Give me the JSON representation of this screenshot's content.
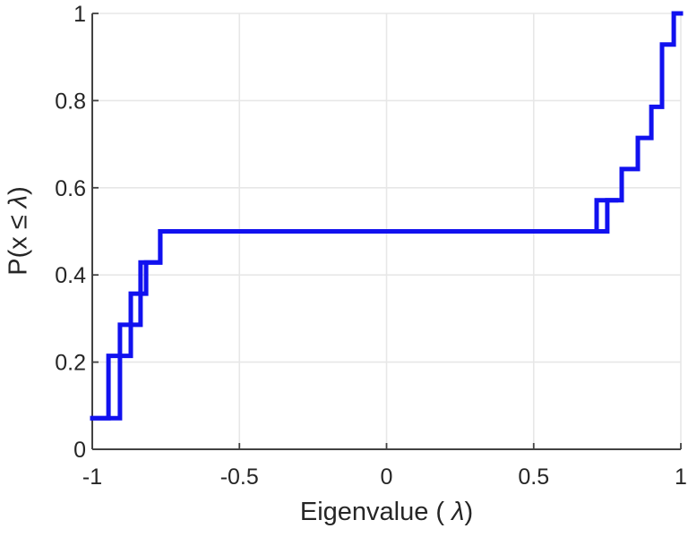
{
  "chart_data": {
    "type": "line",
    "subtype": "ecdf-stairs",
    "title": "",
    "xlabel_prefix": "Eigenvalue (  ",
    "xlabel_symbol": "λ",
    "xlabel_suffix": ")",
    "ylabel_prefix": "P(x ≤ ",
    "ylabel_symbol": "λ",
    "ylabel_suffix": ")",
    "xlim": [
      -1,
      1
    ],
    "ylim": [
      0,
      1
    ],
    "xticks": {
      "values": [
        -1,
        -0.5,
        0,
        0.5,
        1
      ],
      "labels": [
        "-1",
        "-0.5",
        "0",
        "0.5",
        "1"
      ]
    },
    "yticks": {
      "values": [
        0,
        0.2,
        0.4,
        0.6,
        0.8,
        1
      ],
      "labels": [
        "0",
        "0.2",
        "0.4",
        "0.6",
        "0.8",
        "1"
      ]
    },
    "grid": true,
    "legend": "none",
    "line_color": "#1111EF",
    "line_width": 5,
    "grid_color": "#e7e7e7",
    "spine_color": "#424242",
    "text_color": "#262626",
    "series": [
      {
        "name": "eigenvalue-ecdf",
        "start": [
          -1,
          0.0714
        ],
        "jumps": [
          [
            -0.945,
            0.2143
          ],
          [
            -0.869,
            0.3571
          ],
          [
            -0.817,
            0.4286
          ],
          [
            -0.769,
            0.5
          ],
          [
            0.714,
            0.5714
          ],
          [
            0.799,
            0.6429
          ],
          [
            0.854,
            0.7143
          ],
          [
            0.9,
            0.7857
          ],
          [
            0.936,
            0.9286
          ],
          [
            0.976,
            1.0
          ]
        ],
        "end": 1
      },
      {
        "name": "eigenvalue-ecdf-overlay",
        "start": [
          -1,
          0.0714
        ],
        "jumps": [
          [
            -0.906,
            0.2857
          ],
          [
            -0.836,
            0.4286
          ],
          [
            -0.769,
            0.5
          ],
          [
            0.75,
            0.5714
          ]
        ],
        "end": 0.78
      }
    ]
  }
}
